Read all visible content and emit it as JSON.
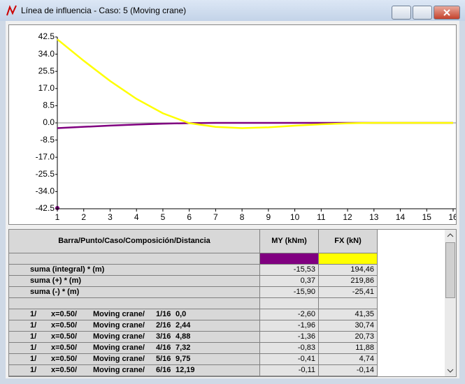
{
  "window_title": "Línea de influencia - Caso: 5 (Moving crane)",
  "chart_data": {
    "type": "line",
    "x": [
      1,
      2,
      3,
      4,
      5,
      6,
      7,
      8,
      9,
      10,
      11,
      12,
      13,
      14,
      15,
      16
    ],
    "xlim": [
      1,
      16
    ],
    "xticks": [
      1,
      2,
      3,
      4,
      5,
      6,
      7,
      8,
      9,
      10,
      11,
      12,
      13,
      14,
      15,
      16
    ],
    "ylim": [
      -42.5,
      42.5
    ],
    "yticks": [
      42.5,
      {
        "value": 34,
        "label": "34.0"
      },
      25.5,
      {
        "value": 17,
        "label": "17.0"
      },
      8.5,
      {
        "value": 0,
        "label": "0.0"
      },
      -8.5,
      {
        "value": -17,
        "label": "-17.0"
      },
      -25.5,
      {
        "value": -34,
        "label": "-34.0"
      },
      -42.5
    ],
    "grid": false,
    "series": [
      {
        "name": "MY (kNm)",
        "color": "#800080",
        "values": [
          -2.6,
          -1.96,
          -1.36,
          -0.83,
          -0.41,
          -0.11,
          0,
          0,
          0,
          0,
          0,
          0,
          0,
          0,
          0,
          0
        ]
      },
      {
        "name": "FX (kN)",
        "color": "#ffff00",
        "values": [
          41.35,
          30.74,
          20.73,
          11.88,
          4.74,
          -0.14,
          -2.0,
          -2.6,
          -2.2,
          -1.4,
          -0.7,
          -0.2,
          0,
          0,
          0,
          0
        ]
      }
    ]
  },
  "table": {
    "header": "Barra/Punto/Caso/Composición/Distancia",
    "summary": [
      {
        "label": "suma (integral) * (m)",
        "my": "-15,53",
        "fx": "194,46"
      },
      {
        "label": "suma (+) * (m)",
        "my": "0,37",
        "fx": "219,86"
      },
      {
        "label": "suma (-) * (m)",
        "my": "-15,90",
        "fx": "-25,41"
      }
    ],
    "rows": [
      {
        "bar": "1/",
        "x": "x=0.50/",
        "case": "Moving crane/",
        "comp": "1/16",
        "dist": "0,0",
        "my": "-2,60",
        "fx": "41,35"
      },
      {
        "bar": "1/",
        "x": "x=0.50/",
        "case": "Moving crane/",
        "comp": "2/16",
        "dist": "2,44",
        "my": "-1,96",
        "fx": "30,74"
      },
      {
        "bar": "1/",
        "x": "x=0.50/",
        "case": "Moving crane/",
        "comp": "3/16",
        "dist": "4,88",
        "my": "-1,36",
        "fx": "20,73"
      },
      {
        "bar": "1/",
        "x": "x=0.50/",
        "case": "Moving crane/",
        "comp": "4/16",
        "dist": "7,32",
        "my": "-0,83",
        "fx": "11,88"
      },
      {
        "bar": "1/",
        "x": "x=0.50/",
        "case": "Moving crane/",
        "comp": "5/16",
        "dist": "9,75",
        "my": "-0,41",
        "fx": "4,74"
      },
      {
        "bar": "1/",
        "x": "x=0.50/",
        "case": "Moving crane/",
        "comp": "6/16",
        "dist": "12,19",
        "my": "-0,11",
        "fx": "-0,14"
      }
    ]
  }
}
